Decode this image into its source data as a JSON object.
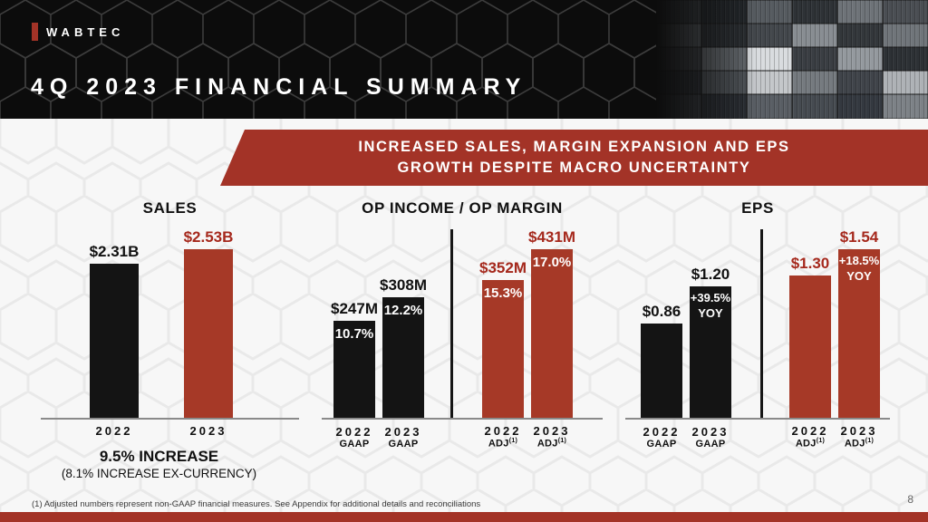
{
  "colors": {
    "banner_red": "#A33327",
    "bar_red": "#A63927",
    "bar_black": "#141414",
    "label_red": "#A5281C"
  },
  "header": {
    "logo_text": "WABTEC",
    "title": "4Q 2023 FINANCIAL SUMMARY"
  },
  "banner": {
    "line1": "INCREASED SALES, MARGIN EXPANSION AND EPS",
    "line2": "GROWTH DESPITE MACRO UNCERTAINTY"
  },
  "chart_data": [
    {
      "type": "bar",
      "title": "SALES",
      "categories": [
        "2022",
        "2023"
      ],
      "divider": false,
      "bars": [
        {
          "x_label": "2022",
          "sub_label": "",
          "sub_sup": "",
          "value": 2.31,
          "label": "$2.31B",
          "color": "black",
          "inside_label": ""
        },
        {
          "x_label": "2023",
          "sub_label": "",
          "sub_sup": "",
          "value": 2.53,
          "label": "$2.53B",
          "color": "red",
          "inside_label": ""
        }
      ]
    },
    {
      "type": "bar",
      "title": "OP INCOME / OP MARGIN",
      "categories": [
        "2022 GAAP",
        "2023 GAAP",
        "2022 ADJ(1)",
        "2023 ADJ(1)"
      ],
      "divider": true,
      "bars": [
        {
          "x_label": "2022",
          "sub_label": "GAAP",
          "sub_sup": "",
          "value": 247,
          "label": "$247M",
          "color": "black",
          "inside_label": "10.7%"
        },
        {
          "x_label": "2023",
          "sub_label": "GAAP",
          "sub_sup": "",
          "value": 308,
          "label": "$308M",
          "color": "black",
          "inside_label": "12.2%"
        },
        {
          "x_label": "2022",
          "sub_label": "ADJ",
          "sub_sup": "(1)",
          "value": 352,
          "label": "$352M",
          "color": "red",
          "inside_label": "15.3%",
          "group_start": true
        },
        {
          "x_label": "2023",
          "sub_label": "ADJ",
          "sub_sup": "(1)",
          "value": 431,
          "label": "$431M",
          "color": "red",
          "inside_label": "17.0%"
        }
      ]
    },
    {
      "type": "bar",
      "title": "EPS",
      "categories": [
        "2022 GAAP",
        "2023 GAAP",
        "2022 ADJ(1)",
        "2023 ADJ(1)"
      ],
      "divider": true,
      "bars": [
        {
          "x_label": "2022",
          "sub_label": "GAAP",
          "sub_sup": "",
          "value": 0.86,
          "label": "$0.86",
          "color": "black",
          "inside_label": ""
        },
        {
          "x_label": "2023",
          "sub_label": "GAAP",
          "sub_sup": "",
          "value": 1.2,
          "label": "$1.20",
          "color": "black",
          "inside_label": "+39.5%\nYOY"
        },
        {
          "x_label": "2022",
          "sub_label": "ADJ",
          "sub_sup": "(1)",
          "value": 1.3,
          "label": "$1.30",
          "color": "red",
          "inside_label": "",
          "group_start": true
        },
        {
          "x_label": "2023",
          "sub_label": "ADJ",
          "sub_sup": "(1)",
          "value": 1.54,
          "label": "$1.54",
          "color": "red",
          "inside_label": "+18.5%\nYOY"
        }
      ]
    }
  ],
  "sales_note": {
    "main": "9.5% INCREASE",
    "sub": "(8.1% INCREASE EX-CURRENCY)"
  },
  "footer": {
    "footnote": "(1)  Adjusted numbers represent non-GAAP financial measures.  See Appendix for additional details and reconciliations",
    "page_number": "8"
  }
}
